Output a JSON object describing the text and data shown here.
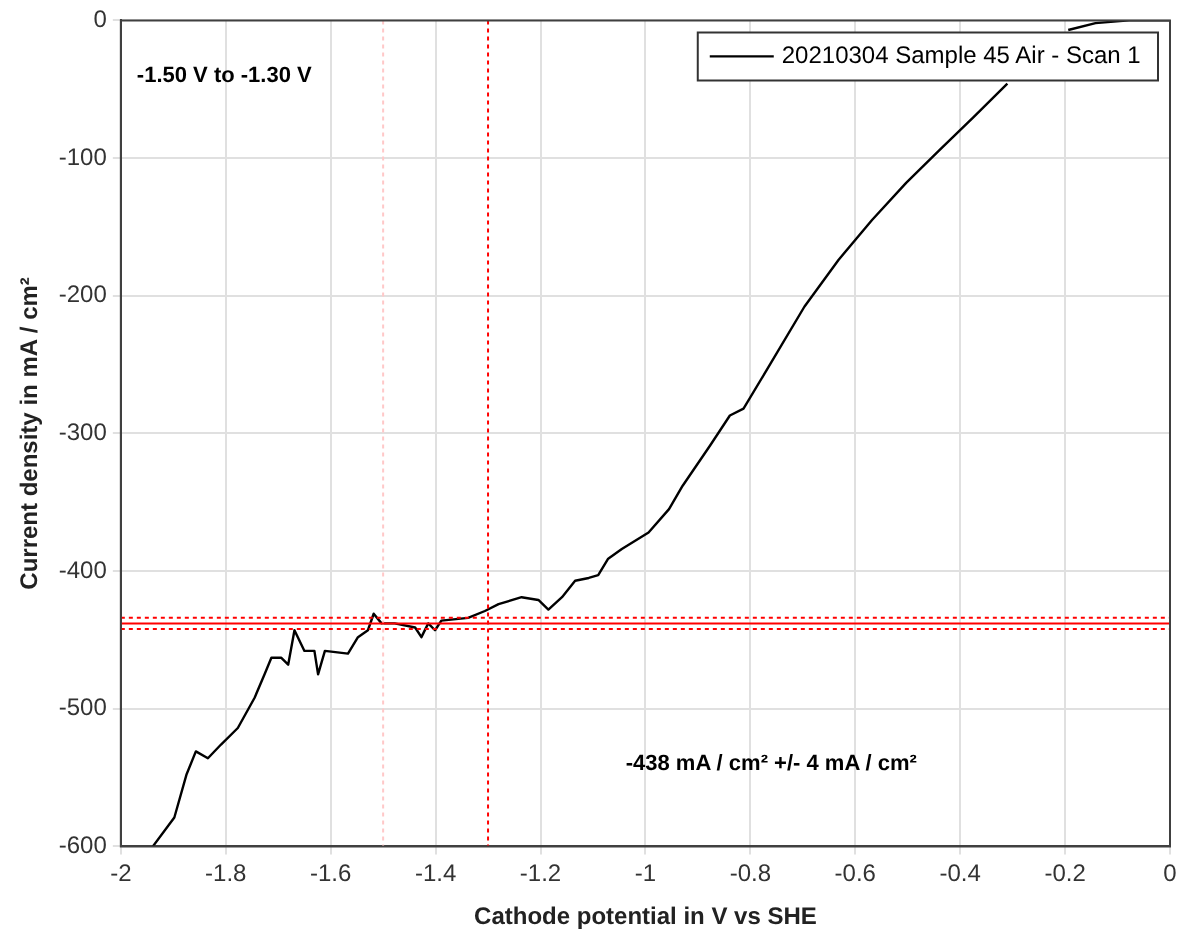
{
  "chart_data": {
    "type": "line",
    "xlabel": "Cathode potential in V vs SHE",
    "ylabel": "Current density in mA / cm²",
    "xlim": [
      -2,
      0
    ],
    "xticks": [
      -2,
      -1.8,
      -1.6,
      -1.4,
      -1.2,
      -1,
      -0.8,
      -0.6,
      -0.4,
      -0.2,
      0
    ],
    "ylim": [
      -600,
      0
    ],
    "yticks": [
      -600,
      -500,
      -400,
      -300,
      -200,
      -100,
      0
    ],
    "grid": true,
    "legend": "top right",
    "marker": "none",
    "line_style": "solid",
    "annotations": [
      "-1.50 V to -1.30 V",
      "-438 mA / cm² +/- 4 mA / cm²"
    ],
    "ref_lines": [
      {
        "axis": "x",
        "value": -1.5,
        "color": "#ffc8c8",
        "line_style": "dotted"
      },
      {
        "axis": "x",
        "value": -1.3,
        "color": "#ff0000",
        "line_style": "dotted"
      },
      {
        "axis": "y",
        "value": -434,
        "color": "#ff0000",
        "line_style": "dotted"
      },
      {
        "axis": "y",
        "value": -438,
        "color": "#ff0000",
        "line_style": "solid"
      },
      {
        "axis": "y",
        "value": -442,
        "color": "#ff0000",
        "line_style": "dotted"
      }
    ],
    "series": [
      {
        "name": "20210304 Sample 45 Air - Scan 1",
        "color": "#000000",
        "x": [
          -1.939,
          -1.898,
          -1.875,
          -1.857,
          -1.834,
          -1.809,
          -1.777,
          -1.745,
          -1.726,
          -1.713,
          -1.694,
          -1.681,
          -1.669,
          -1.65,
          -1.631,
          -1.624,
          -1.611,
          -1.567,
          -1.548,
          -1.529,
          -1.518,
          -1.503,
          -1.478,
          -1.439,
          -1.427,
          -1.414,
          -1.401,
          -1.389,
          -1.338,
          -1.306,
          -1.28,
          -1.236,
          -1.204,
          -1.185,
          -1.159,
          -1.134,
          -1.108,
          -1.09,
          -1.071,
          -1.045,
          -0.994,
          -0.955,
          -0.929,
          -0.877,
          -0.839,
          -0.813,
          -0.761,
          -0.697,
          -0.632,
          -0.568,
          -0.503,
          -0.439,
          -0.374,
          -0.31,
          -0.245,
          -0.194,
          -0.142,
          -0.078,
          0
        ],
        "values": [
          -600,
          -579,
          -548,
          -531,
          -536,
          -526,
          -514,
          -492,
          -475,
          -463,
          -463,
          -468,
          -443,
          -458,
          -458,
          -475,
          -458,
          -460,
          -448,
          -443,
          -431,
          -438,
          -438,
          -441,
          -448,
          -438,
          -443,
          -436,
          -434,
          -429,
          -424,
          -419,
          -421,
          -428,
          -419,
          -407,
          -405,
          -403,
          -391,
          -384,
          -372,
          -355,
          -338,
          -309,
          -287,
          -282,
          -249,
          -208,
          -174,
          -145,
          -118,
          -94,
          -70,
          -46,
          null,
          -7,
          -2,
          0,
          0
        ]
      }
    ]
  }
}
